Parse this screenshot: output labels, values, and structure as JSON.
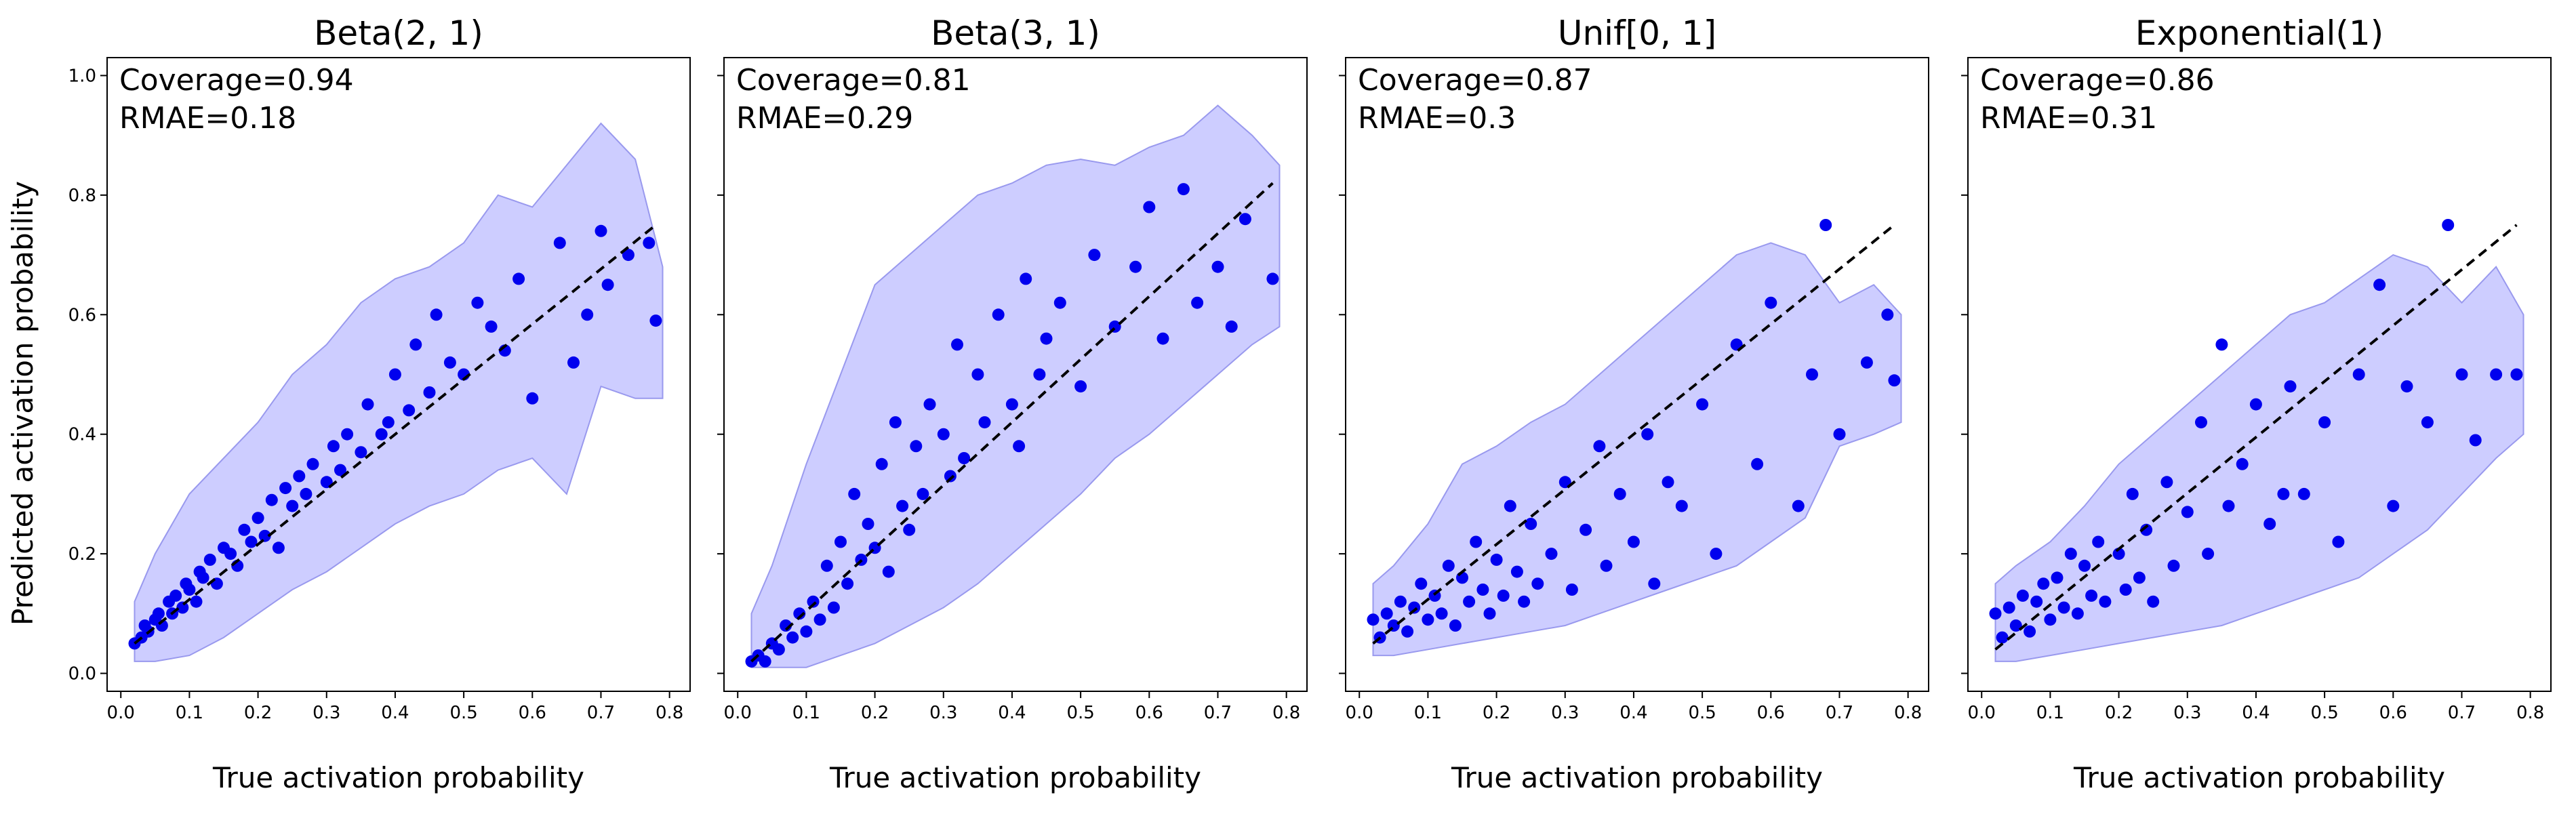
{
  "figure": {
    "ylabel": "Predicted activation probability",
    "colors": {
      "points": "#0000ee",
      "band": "#c8c8ff",
      "band_edge": "#9999ee",
      "reference_line": "#000000",
      "background": "#ffffff"
    }
  },
  "chart_data": [
    {
      "type": "scatter",
      "title": "Beta(2, 1)",
      "xlabel": "True activation probability",
      "ylabel": "Predicted activation probability",
      "annotations": [
        "Coverage=0.94",
        "RMAE=0.18"
      ],
      "xlim": [
        -0.02,
        0.83
      ],
      "ylim": [
        -0.03,
        1.03
      ],
      "xticks": [
        0.0,
        0.1,
        0.2,
        0.3,
        0.4,
        0.5,
        0.6,
        0.7,
        0.8
      ],
      "yticks": [
        0.0,
        0.2,
        0.4,
        0.6,
        0.8,
        1.0
      ],
      "xtick_labels": [
        "0.0",
        "0.1",
        "0.2",
        "0.3",
        "0.4",
        "0.5",
        "0.6",
        "0.7",
        "0.8"
      ],
      "ytick_labels": [
        "0.0",
        "0.2",
        "0.4",
        "0.6",
        "0.8",
        "1.0"
      ],
      "grid": false,
      "reference_line": {
        "x": [
          0.02,
          0.78
        ],
        "y": [
          0.05,
          0.75
        ],
        "style": "dashed"
      },
      "band": {
        "x": [
          0.02,
          0.05,
          0.1,
          0.15,
          0.2,
          0.25,
          0.3,
          0.35,
          0.4,
          0.45,
          0.5,
          0.55,
          0.6,
          0.65,
          0.7,
          0.75,
          0.79
        ],
        "lower": [
          0.02,
          0.02,
          0.03,
          0.06,
          0.1,
          0.14,
          0.17,
          0.21,
          0.25,
          0.28,
          0.3,
          0.34,
          0.36,
          0.3,
          0.48,
          0.46,
          0.46
        ],
        "upper": [
          0.12,
          0.2,
          0.3,
          0.36,
          0.42,
          0.5,
          0.55,
          0.62,
          0.66,
          0.68,
          0.72,
          0.8,
          0.78,
          0.85,
          0.92,
          0.86,
          0.68
        ]
      },
      "points": {
        "x": [
          0.02,
          0.03,
          0.035,
          0.04,
          0.05,
          0.055,
          0.06,
          0.07,
          0.075,
          0.08,
          0.09,
          0.095,
          0.1,
          0.11,
          0.115,
          0.12,
          0.13,
          0.14,
          0.15,
          0.16,
          0.17,
          0.18,
          0.19,
          0.2,
          0.21,
          0.22,
          0.23,
          0.24,
          0.25,
          0.26,
          0.27,
          0.28,
          0.3,
          0.31,
          0.32,
          0.33,
          0.35,
          0.36,
          0.38,
          0.39,
          0.4,
          0.42,
          0.43,
          0.45,
          0.46,
          0.48,
          0.5,
          0.52,
          0.54,
          0.56,
          0.58,
          0.6,
          0.64,
          0.66,
          0.68,
          0.7,
          0.71,
          0.74,
          0.77,
          0.78
        ],
        "y": [
          0.05,
          0.06,
          0.08,
          0.07,
          0.09,
          0.1,
          0.08,
          0.12,
          0.1,
          0.13,
          0.11,
          0.15,
          0.14,
          0.12,
          0.17,
          0.16,
          0.19,
          0.15,
          0.21,
          0.2,
          0.18,
          0.24,
          0.22,
          0.26,
          0.23,
          0.29,
          0.21,
          0.31,
          0.28,
          0.33,
          0.3,
          0.35,
          0.32,
          0.38,
          0.34,
          0.4,
          0.37,
          0.45,
          0.4,
          0.42,
          0.5,
          0.44,
          0.55,
          0.47,
          0.6,
          0.52,
          0.5,
          0.62,
          0.58,
          0.54,
          0.66,
          0.46,
          0.72,
          0.52,
          0.6,
          0.74,
          0.65,
          0.7,
          0.72,
          0.59
        ]
      }
    },
    {
      "type": "scatter",
      "title": "Beta(3, 1)",
      "xlabel": "True activation probability",
      "annotations": [
        "Coverage=0.81",
        "RMAE=0.29"
      ],
      "xlim": [
        -0.02,
        0.83
      ],
      "ylim": [
        -0.03,
        1.03
      ],
      "xticks": [
        0.0,
        0.1,
        0.2,
        0.3,
        0.4,
        0.5,
        0.6,
        0.7,
        0.8
      ],
      "yticks": [
        0.0,
        0.2,
        0.4,
        0.6,
        0.8,
        1.0
      ],
      "xtick_labels": [
        "0.0",
        "0.1",
        "0.2",
        "0.3",
        "0.4",
        "0.5",
        "0.6",
        "0.7",
        "0.8"
      ],
      "ytick_labels": [
        "0.0",
        "0.2",
        "0.4",
        "0.6",
        "0.8",
        "1.0"
      ],
      "grid": false,
      "reference_line": {
        "x": [
          0.02,
          0.78
        ],
        "y": [
          0.02,
          0.82
        ],
        "style": "dashed"
      },
      "band": {
        "x": [
          0.02,
          0.05,
          0.1,
          0.15,
          0.2,
          0.25,
          0.3,
          0.35,
          0.4,
          0.45,
          0.5,
          0.55,
          0.6,
          0.65,
          0.7,
          0.75,
          0.79
        ],
        "lower": [
          0.01,
          0.01,
          0.01,
          0.03,
          0.05,
          0.08,
          0.11,
          0.15,
          0.2,
          0.25,
          0.3,
          0.36,
          0.4,
          0.45,
          0.5,
          0.55,
          0.58
        ],
        "upper": [
          0.1,
          0.18,
          0.35,
          0.5,
          0.65,
          0.7,
          0.75,
          0.8,
          0.82,
          0.85,
          0.86,
          0.85,
          0.88,
          0.9,
          0.95,
          0.9,
          0.85
        ]
      },
      "points": {
        "x": [
          0.02,
          0.03,
          0.04,
          0.05,
          0.06,
          0.07,
          0.08,
          0.09,
          0.1,
          0.11,
          0.12,
          0.13,
          0.14,
          0.15,
          0.16,
          0.17,
          0.18,
          0.19,
          0.2,
          0.21,
          0.22,
          0.23,
          0.24,
          0.25,
          0.26,
          0.27,
          0.28,
          0.3,
          0.31,
          0.32,
          0.33,
          0.35,
          0.36,
          0.38,
          0.4,
          0.41,
          0.42,
          0.44,
          0.45,
          0.47,
          0.5,
          0.52,
          0.55,
          0.58,
          0.6,
          0.62,
          0.65,
          0.67,
          0.7,
          0.72,
          0.74,
          0.78
        ],
        "y": [
          0.02,
          0.03,
          0.02,
          0.05,
          0.04,
          0.08,
          0.06,
          0.1,
          0.07,
          0.12,
          0.09,
          0.18,
          0.11,
          0.22,
          0.15,
          0.3,
          0.19,
          0.25,
          0.21,
          0.35,
          0.17,
          0.42,
          0.28,
          0.24,
          0.38,
          0.3,
          0.45,
          0.4,
          0.33,
          0.55,
          0.36,
          0.5,
          0.42,
          0.6,
          0.45,
          0.38,
          0.66,
          0.5,
          0.56,
          0.62,
          0.48,
          0.7,
          0.58,
          0.68,
          0.78,
          0.56,
          0.81,
          0.62,
          0.68,
          0.58,
          0.76,
          0.66
        ]
      }
    },
    {
      "type": "scatter",
      "title": "Unif[0, 1]",
      "xlabel": "True activation probability",
      "annotations": [
        "Coverage=0.87",
        "RMAE=0.3"
      ],
      "xlim": [
        -0.02,
        0.83
      ],
      "ylim": [
        -0.03,
        1.03
      ],
      "xticks": [
        0.0,
        0.1,
        0.2,
        0.3,
        0.4,
        0.5,
        0.6,
        0.7,
        0.8
      ],
      "yticks": [
        0.0,
        0.2,
        0.4,
        0.6,
        0.8,
        1.0
      ],
      "xtick_labels": [
        "0.0",
        "0.1",
        "0.2",
        "0.3",
        "0.4",
        "0.5",
        "0.6",
        "0.7",
        "0.8"
      ],
      "ytick_labels": [
        "0.0",
        "0.2",
        "0.4",
        "0.6",
        "0.8",
        "1.0"
      ],
      "grid": false,
      "reference_line": {
        "x": [
          0.02,
          0.78
        ],
        "y": [
          0.05,
          0.75
        ],
        "style": "dashed"
      },
      "band": {
        "x": [
          0.02,
          0.05,
          0.1,
          0.15,
          0.2,
          0.25,
          0.3,
          0.35,
          0.4,
          0.45,
          0.5,
          0.55,
          0.6,
          0.65,
          0.7,
          0.75,
          0.79
        ],
        "lower": [
          0.03,
          0.03,
          0.04,
          0.05,
          0.06,
          0.07,
          0.08,
          0.1,
          0.12,
          0.14,
          0.16,
          0.18,
          0.22,
          0.26,
          0.38,
          0.4,
          0.42
        ],
        "upper": [
          0.15,
          0.18,
          0.25,
          0.35,
          0.38,
          0.42,
          0.45,
          0.5,
          0.55,
          0.6,
          0.65,
          0.7,
          0.72,
          0.7,
          0.62,
          0.65,
          0.6
        ]
      },
      "points": {
        "x": [
          0.02,
          0.03,
          0.04,
          0.05,
          0.06,
          0.07,
          0.08,
          0.09,
          0.1,
          0.11,
          0.12,
          0.13,
          0.14,
          0.15,
          0.16,
          0.17,
          0.18,
          0.19,
          0.2,
          0.21,
          0.22,
          0.23,
          0.24,
          0.25,
          0.26,
          0.28,
          0.3,
          0.31,
          0.33,
          0.35,
          0.36,
          0.38,
          0.4,
          0.42,
          0.43,
          0.45,
          0.47,
          0.5,
          0.52,
          0.55,
          0.58,
          0.6,
          0.64,
          0.66,
          0.68,
          0.7,
          0.74,
          0.77,
          0.78
        ],
        "y": [
          0.09,
          0.06,
          0.1,
          0.08,
          0.12,
          0.07,
          0.11,
          0.15,
          0.09,
          0.13,
          0.1,
          0.18,
          0.08,
          0.16,
          0.12,
          0.22,
          0.14,
          0.1,
          0.19,
          0.13,
          0.28,
          0.17,
          0.12,
          0.25,
          0.15,
          0.2,
          0.32,
          0.14,
          0.24,
          0.38,
          0.18,
          0.3,
          0.22,
          0.4,
          0.15,
          0.32,
          0.28,
          0.45,
          0.2,
          0.55,
          0.35,
          0.62,
          0.28,
          0.5,
          0.75,
          0.4,
          0.52,
          0.6,
          0.49
        ]
      }
    },
    {
      "type": "scatter",
      "title": "Exponential(1)",
      "xlabel": "True activation probability",
      "annotations": [
        "Coverage=0.86",
        "RMAE=0.31"
      ],
      "xlim": [
        -0.02,
        0.83
      ],
      "ylim": [
        -0.03,
        1.03
      ],
      "xticks": [
        0.0,
        0.1,
        0.2,
        0.3,
        0.4,
        0.5,
        0.6,
        0.7,
        0.8
      ],
      "yticks": [
        0.0,
        0.2,
        0.4,
        0.6,
        0.8,
        1.0
      ],
      "xtick_labels": [
        "0.0",
        "0.1",
        "0.2",
        "0.3",
        "0.4",
        "0.5",
        "0.6",
        "0.7",
        "0.8"
      ],
      "ytick_labels": [
        "0.0",
        "0.2",
        "0.4",
        "0.6",
        "0.8",
        "1.0"
      ],
      "grid": false,
      "reference_line": {
        "x": [
          0.02,
          0.78
        ],
        "y": [
          0.04,
          0.75
        ],
        "style": "dashed"
      },
      "band": {
        "x": [
          0.02,
          0.05,
          0.1,
          0.15,
          0.2,
          0.25,
          0.3,
          0.35,
          0.4,
          0.45,
          0.5,
          0.55,
          0.6,
          0.65,
          0.7,
          0.75,
          0.79
        ],
        "lower": [
          0.02,
          0.02,
          0.03,
          0.04,
          0.05,
          0.06,
          0.07,
          0.08,
          0.1,
          0.12,
          0.14,
          0.16,
          0.2,
          0.24,
          0.3,
          0.36,
          0.4
        ],
        "upper": [
          0.15,
          0.18,
          0.22,
          0.28,
          0.35,
          0.4,
          0.45,
          0.5,
          0.55,
          0.6,
          0.62,
          0.66,
          0.7,
          0.68,
          0.62,
          0.68,
          0.6
        ]
      },
      "points": {
        "x": [
          0.02,
          0.03,
          0.04,
          0.05,
          0.06,
          0.07,
          0.08,
          0.09,
          0.1,
          0.11,
          0.12,
          0.13,
          0.14,
          0.15,
          0.16,
          0.17,
          0.18,
          0.2,
          0.21,
          0.22,
          0.23,
          0.24,
          0.25,
          0.27,
          0.28,
          0.3,
          0.32,
          0.33,
          0.35,
          0.36,
          0.38,
          0.4,
          0.42,
          0.44,
          0.45,
          0.47,
          0.5,
          0.52,
          0.55,
          0.58,
          0.6,
          0.62,
          0.65,
          0.68,
          0.7,
          0.72,
          0.75,
          0.78
        ],
        "y": [
          0.1,
          0.06,
          0.11,
          0.08,
          0.13,
          0.07,
          0.12,
          0.15,
          0.09,
          0.16,
          0.11,
          0.2,
          0.1,
          0.18,
          0.13,
          0.22,
          0.12,
          0.2,
          0.14,
          0.3,
          0.16,
          0.24,
          0.12,
          0.32,
          0.18,
          0.27,
          0.42,
          0.2,
          0.55,
          0.28,
          0.35,
          0.45,
          0.25,
          0.3,
          0.48,
          0.3,
          0.42,
          0.22,
          0.5,
          0.65,
          0.28,
          0.48,
          0.42,
          0.75,
          0.5,
          0.39,
          0.5,
          0.5
        ]
      }
    }
  ]
}
